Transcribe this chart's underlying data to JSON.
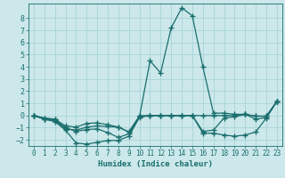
{
  "xlabel": "Humidex (Indice chaleur)",
  "xlim": [
    -0.5,
    23.5
  ],
  "ylim": [
    -2.5,
    9.2
  ],
  "xticks": [
    0,
    1,
    2,
    3,
    4,
    5,
    6,
    7,
    8,
    9,
    10,
    11,
    12,
    13,
    14,
    15,
    16,
    17,
    18,
    19,
    20,
    21,
    22,
    23
  ],
  "yticks": [
    -2,
    -1,
    0,
    1,
    2,
    3,
    4,
    5,
    6,
    7,
    8
  ],
  "bg_color": "#cce8ea",
  "grid_color": "#a8d4d8",
  "line_color": "#1a6e6e",
  "line_width": 0.9,
  "marker": "+",
  "marker_size": 4,
  "marker_ew": 1.0,
  "x": [
    0,
    1,
    2,
    3,
    4,
    5,
    6,
    7,
    8,
    9,
    10,
    11,
    12,
    13,
    14,
    15,
    16,
    17,
    18,
    19,
    20,
    21,
    22,
    23
  ],
  "lines": [
    [
      0.0,
      -0.3,
      -0.5,
      -1.2,
      -2.25,
      -2.35,
      -2.2,
      -2.05,
      -2.05,
      -1.7,
      -0.15,
      0.0,
      0.0,
      0.0,
      0.0,
      0.0,
      -1.45,
      -1.45,
      -1.6,
      -1.7,
      -1.6,
      -1.35,
      -0.2,
      1.15
    ],
    [
      0.0,
      -0.3,
      -0.4,
      -1.1,
      -1.2,
      -0.95,
      -0.85,
      -0.9,
      -0.95,
      -1.35,
      -0.05,
      0.0,
      0.0,
      0.0,
      0.0,
      0.0,
      -1.3,
      -1.2,
      -0.2,
      -0.1,
      0.1,
      -0.05,
      -0.05,
      1.15
    ],
    [
      0.0,
      -0.25,
      -0.3,
      -0.85,
      -0.95,
      -0.65,
      -0.6,
      -0.75,
      -0.95,
      -1.35,
      -0.05,
      0.0,
      0.0,
      0.0,
      0.0,
      0.0,
      0.0,
      0.0,
      0.0,
      0.0,
      0.1,
      -0.05,
      -0.05,
      1.15
    ],
    [
      0.0,
      -0.2,
      -0.3,
      -1.0,
      -1.3,
      -1.15,
      -1.1,
      -1.4,
      -1.8,
      -1.5,
      -0.1,
      4.5,
      3.5,
      7.2,
      8.85,
      8.2,
      4.0,
      0.2,
      0.2,
      0.1,
      0.1,
      -0.3,
      -0.15,
      1.15
    ]
  ]
}
